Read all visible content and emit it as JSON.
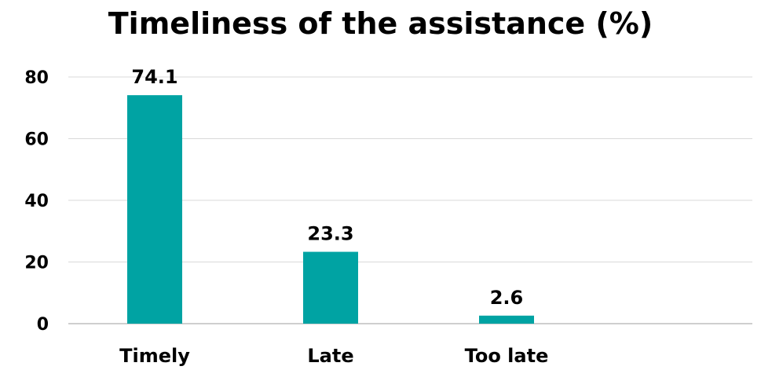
{
  "chart_data": {
    "type": "bar",
    "title": "Timeliness of the assistance (%)",
    "xlabel": "",
    "ylabel": "",
    "categories": [
      "Timely",
      "Late",
      "Too late"
    ],
    "values": [
      74.1,
      23.3,
      2.6
    ],
    "data_labels": [
      "74.1",
      "23.3",
      "2.6"
    ],
    "ylim": [
      0,
      80
    ],
    "yticks": [
      0,
      20,
      40,
      60,
      80
    ],
    "ytick_labels": [
      "0",
      "20",
      "40",
      "60",
      "80"
    ],
    "grid": true,
    "legend": "none",
    "colors": {
      "bar": "#00A3A3",
      "grid": "#d9d9d9",
      "text": "#000000"
    }
  }
}
